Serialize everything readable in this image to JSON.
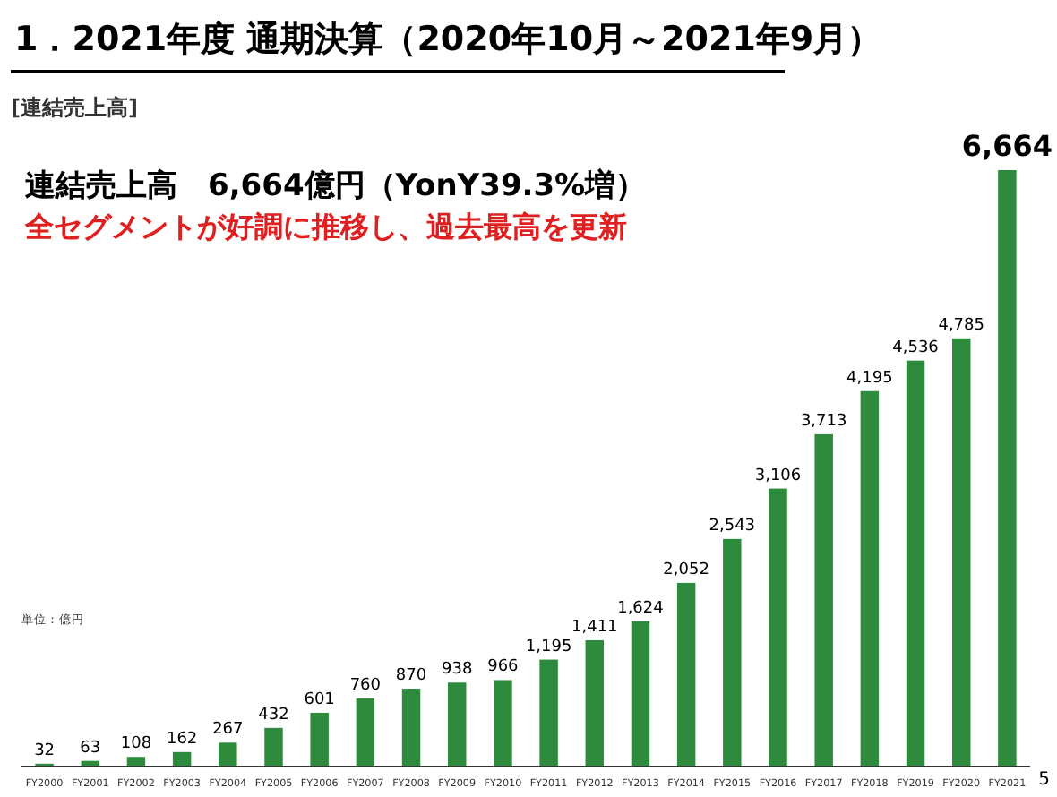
{
  "chart_data": {
    "type": "bar",
    "title": "1．2021年度 通期決算（2020年10月～2021年9月）",
    "subtitle": "[連結売上高]",
    "annotations": [
      "連結売上高　6,664億円（YonY39.3%増）",
      "全セグメントが好調に推移し、過去最高を更新",
      "単位：億円",
      "5"
    ],
    "categories": [
      "FY2000",
      "FY2001",
      "FY2002",
      "FY2003",
      "FY2004",
      "FY2005",
      "FY2006",
      "FY2007",
      "FY2008",
      "FY2009",
      "FY2010",
      "FY2011",
      "FY2012",
      "FY2013",
      "FY2014",
      "FY2015",
      "FY2016",
      "FY2017",
      "FY2018",
      "FY2019",
      "FY2020",
      "FY2021"
    ],
    "values": [
      32,
      63,
      108,
      162,
      267,
      432,
      601,
      760,
      870,
      938,
      966,
      1195,
      1411,
      1624,
      2052,
      2543,
      3106,
      3713,
      4195,
      4536,
      4785,
      6664
    ],
    "value_labels": [
      "32",
      "63",
      "108",
      "162",
      "267",
      "432",
      "601",
      "760",
      "870",
      "938",
      "966",
      "1,195",
      "1,411",
      "1,624",
      "2,052",
      "2,543",
      "3,106",
      "3,713",
      "4,195",
      "4,536",
      "4,785",
      "6,664"
    ],
    "color": "#2e8b3e"
  }
}
